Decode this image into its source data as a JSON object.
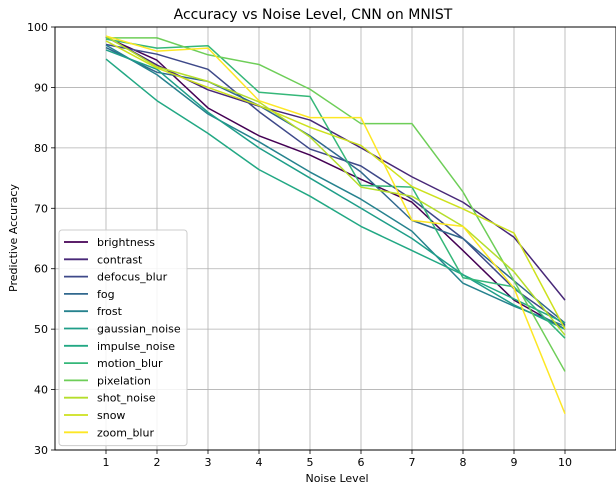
{
  "chart_data": {
    "type": "line",
    "title": "Accuracy vs Noise Level, CNN on MNIST",
    "xlabel": "Noise Level",
    "ylabel": "Predictive Accuracy",
    "xlim": [
      0,
      11
    ],
    "ylim": [
      30,
      100
    ],
    "xticks": [
      1,
      2,
      3,
      4,
      5,
      6,
      7,
      8,
      9,
      10
    ],
    "yticks": [
      30,
      40,
      50,
      60,
      70,
      80,
      90,
      100
    ],
    "grid": true,
    "legend_position": "lower-left",
    "x": [
      1,
      2,
      3,
      4,
      5,
      6,
      7,
      8,
      9,
      10
    ],
    "series": [
      {
        "name": "brightness",
        "color": "#440154",
        "values": [
          98.3,
          94.5,
          86.6,
          82.0,
          78.8,
          74.8,
          71.0,
          63.0,
          54.8,
          50.0
        ]
      },
      {
        "name": "contrast",
        "color": "#482878",
        "values": [
          98.4,
          93.7,
          89.6,
          86.9,
          84.6,
          80.0,
          75.2,
          71.0,
          65.2,
          54.8
        ]
      },
      {
        "name": "defocus_blur",
        "color": "#3e4989",
        "values": [
          97.1,
          95.5,
          93.0,
          86.0,
          79.8,
          77.0,
          71.5,
          65.0,
          56.7,
          50.7
        ]
      },
      {
        "name": "fog",
        "color": "#31688e",
        "values": [
          96.6,
          92.5,
          91.0,
          87.0,
          82.0,
          76.0,
          68.0,
          65.0,
          58.0,
          51.0
        ]
      },
      {
        "name": "frost",
        "color": "#26828e",
        "values": [
          97.0,
          92.1,
          85.6,
          81.0,
          76.0,
          71.5,
          66.2,
          57.6,
          53.8,
          50.5
        ]
      },
      {
        "name": "gaussian_noise",
        "color": "#1f9e89",
        "values": [
          96.2,
          93.0,
          85.9,
          80.0,
          75.0,
          70.0,
          65.0,
          59.0,
          54.0,
          50.0
        ]
      },
      {
        "name": "impulse_noise",
        "color": "#22a884",
        "values": [
          94.7,
          87.8,
          82.4,
          76.4,
          72.0,
          67.0,
          63.0,
          59.0,
          55.0,
          51.0
        ]
      },
      {
        "name": "motion_blur",
        "color": "#35b779",
        "values": [
          98.0,
          96.5,
          96.9,
          89.2,
          88.5,
          73.8,
          73.5,
          58.5,
          57.0,
          48.5
        ]
      },
      {
        "name": "pixelation",
        "color": "#6ece58",
        "values": [
          98.2,
          98.2,
          95.4,
          93.8,
          89.7,
          84.0,
          84.0,
          72.7,
          58.0,
          43.0
        ]
      },
      {
        "name": "shot_noise",
        "color": "#b5de2b",
        "values": [
          98.5,
          93.4,
          91.0,
          87.6,
          81.8,
          73.5,
          72.0,
          67.0,
          59.5,
          49.0
        ]
      },
      {
        "name": "snow",
        "color": "#cde11d",
        "values": [
          97.7,
          93.2,
          90.0,
          87.0,
          83.4,
          80.4,
          73.6,
          69.9,
          65.9,
          50.0
        ]
      },
      {
        "name": "zoom_blur",
        "color": "#fde725",
        "values": [
          98.5,
          96.0,
          96.5,
          87.8,
          85.0,
          85.0,
          68.0,
          67.0,
          56.8,
          36.0
        ]
      }
    ]
  }
}
